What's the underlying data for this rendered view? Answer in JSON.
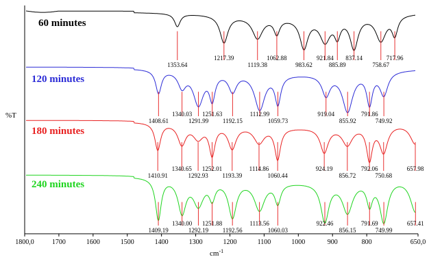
{
  "chart_data": {
    "type": "line",
    "title": "",
    "xlabel": "cm-1",
    "xlabel_main": "cm",
    "xlabel_sup": "-1",
    "ylabel": "%T",
    "xlim": [
      1800,
      650
    ],
    "x_ticks": [
      {
        "value": 1800,
        "label": "1800,0"
      },
      {
        "value": 1700,
        "label": "1700"
      },
      {
        "value": 1600,
        "label": "1600"
      },
      {
        "value": 1500,
        "label": "1500"
      },
      {
        "value": 1400,
        "label": "1400"
      },
      {
        "value": 1300,
        "label": "1300"
      },
      {
        "value": 1200,
        "label": "1200"
      },
      {
        "value": 1100,
        "label": "1100"
      },
      {
        "value": 1000,
        "label": "1000"
      },
      {
        "value": 900,
        "label": "900"
      },
      {
        "value": 800,
        "label": "800"
      },
      {
        "value": 650,
        "label": "650,0"
      }
    ],
    "grid": false,
    "legend": "inline-left",
    "series": [
      {
        "name": "60 minutes",
        "color": "#000000",
        "peaks": [
          {
            "x": 1353.64,
            "label": "1353.64"
          },
          {
            "x": 1217.39,
            "label": "1217.39"
          },
          {
            "x": 1119.38,
            "label": "1119.38"
          },
          {
            "x": 1062.88,
            "label": "1062.88"
          },
          {
            "x": 983.62,
            "label": "983.62"
          },
          {
            "x": 921.84,
            "label": "921.84"
          },
          {
            "x": 885.89,
            "label": "885.89"
          },
          {
            "x": 837.14,
            "label": "837.14"
          },
          {
            "x": 758.67,
            "label": "758.67"
          },
          {
            "x": 717.96,
            "label": "717.96"
          }
        ]
      },
      {
        "name": "120 minutes",
        "color": "#2b2bd6",
        "peaks": [
          {
            "x": 1408.61,
            "label": "1408.61"
          },
          {
            "x": 1340.03,
            "label": "1340.03"
          },
          {
            "x": 1291.99,
            "label": "1291.99"
          },
          {
            "x": 1251.63,
            "label": "1251.63"
          },
          {
            "x": 1192.15,
            "label": "1192.15"
          },
          {
            "x": 1112.99,
            "label": "1112.99"
          },
          {
            "x": 1059.73,
            "label": "1059.73"
          },
          {
            "x": 919.04,
            "label": "919.04"
          },
          {
            "x": 855.92,
            "label": "855.92"
          },
          {
            "x": 791.86,
            "label": "791.86"
          },
          {
            "x": 749.92,
            "label": "749.92"
          }
        ]
      },
      {
        "name": "180 minutes",
        "color": "#e82020",
        "peaks": [
          {
            "x": 1410.91,
            "label": "1410.91"
          },
          {
            "x": 1340.65,
            "label": "1340.65"
          },
          {
            "x": 1292.93,
            "label": "1292.93"
          },
          {
            "x": 1252.01,
            "label": "1252.01"
          },
          {
            "x": 1193.39,
            "label": "1193.39"
          },
          {
            "x": 1114.86,
            "label": "1114.86"
          },
          {
            "x": 1060.44,
            "label": "1060.44"
          },
          {
            "x": 924.19,
            "label": "924.19"
          },
          {
            "x": 856.72,
            "label": "856.72"
          },
          {
            "x": 792.06,
            "label": "792.06"
          },
          {
            "x": 750.68,
            "label": "750.68"
          },
          {
            "x": 657.98,
            "label": "657.98"
          }
        ]
      },
      {
        "name": "240 minutes",
        "color": "#1fd41f",
        "peaks": [
          {
            "x": 1409.19,
            "label": "1409.19"
          },
          {
            "x": 1340.0,
            "label": "1340.00"
          },
          {
            "x": 1292.19,
            "label": "1292.19"
          },
          {
            "x": 1251.88,
            "label": "1251.88"
          },
          {
            "x": 1192.56,
            "label": "1192.56"
          },
          {
            "x": 1113.56,
            "label": "1113.56"
          },
          {
            "x": 1060.03,
            "label": "1060.03"
          },
          {
            "x": 922.46,
            "label": "922.46"
          },
          {
            "x": 856.15,
            "label": "856.15"
          },
          {
            "x": 791.69,
            "label": "791.69"
          },
          {
            "x": 749.99,
            "label": "749.99"
          },
          {
            "x": 657.41,
            "label": "657.41"
          }
        ]
      }
    ]
  }
}
